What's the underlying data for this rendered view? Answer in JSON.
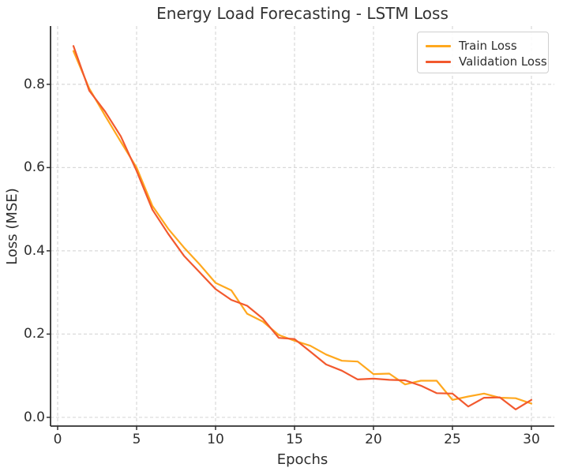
{
  "chart_data": {
    "type": "line",
    "title": "Energy Load Forecasting - LSTM Loss",
    "xlabel": "Epochs",
    "ylabel": "Loss (MSE)",
    "x": [
      1,
      2,
      3,
      4,
      5,
      6,
      7,
      8,
      9,
      10,
      11,
      12,
      13,
      14,
      15,
      16,
      17,
      18,
      19,
      20,
      21,
      22,
      23,
      24,
      25,
      26,
      27,
      28,
      29,
      30
    ],
    "series": [
      {
        "name": "Train Loss",
        "color": "#FFA81E",
        "values": [
          0.88,
          0.79,
          0.725,
          0.662,
          0.6,
          0.508,
          0.453,
          0.408,
          0.367,
          0.323,
          0.305,
          0.249,
          0.23,
          0.198,
          0.184,
          0.172,
          0.151,
          0.136,
          0.134,
          0.104,
          0.105,
          0.079,
          0.088,
          0.088,
          0.042,
          0.05,
          0.057,
          0.047,
          0.046,
          0.033
        ]
      },
      {
        "name": "Validation Loss",
        "color": "#F2592E",
        "values": [
          0.892,
          0.785,
          0.735,
          0.675,
          0.592,
          0.499,
          0.441,
          0.388,
          0.348,
          0.308,
          0.282,
          0.268,
          0.237,
          0.191,
          0.188,
          0.158,
          0.127,
          0.112,
          0.091,
          0.093,
          0.09,
          0.089,
          0.076,
          0.058,
          0.057,
          0.026,
          0.047,
          0.048,
          0.019,
          0.042
        ]
      }
    ],
    "xlim": [
      -0.45,
      31.45
    ],
    "ylim": [
      -0.021,
      0.94
    ],
    "xticks": [
      0,
      5,
      10,
      15,
      20,
      25,
      30
    ],
    "yticks": [
      0.0,
      0.2,
      0.4,
      0.6,
      0.8
    ],
    "grid": {
      "show": true,
      "style": "dashed",
      "color": "#d9d9d9"
    },
    "legend_position": "upper right"
  },
  "style_colors": {
    "text": "#2e2e2e",
    "spine": "#2f2f2f",
    "tick": "#2f2f2f",
    "background": "#ffffff"
  }
}
